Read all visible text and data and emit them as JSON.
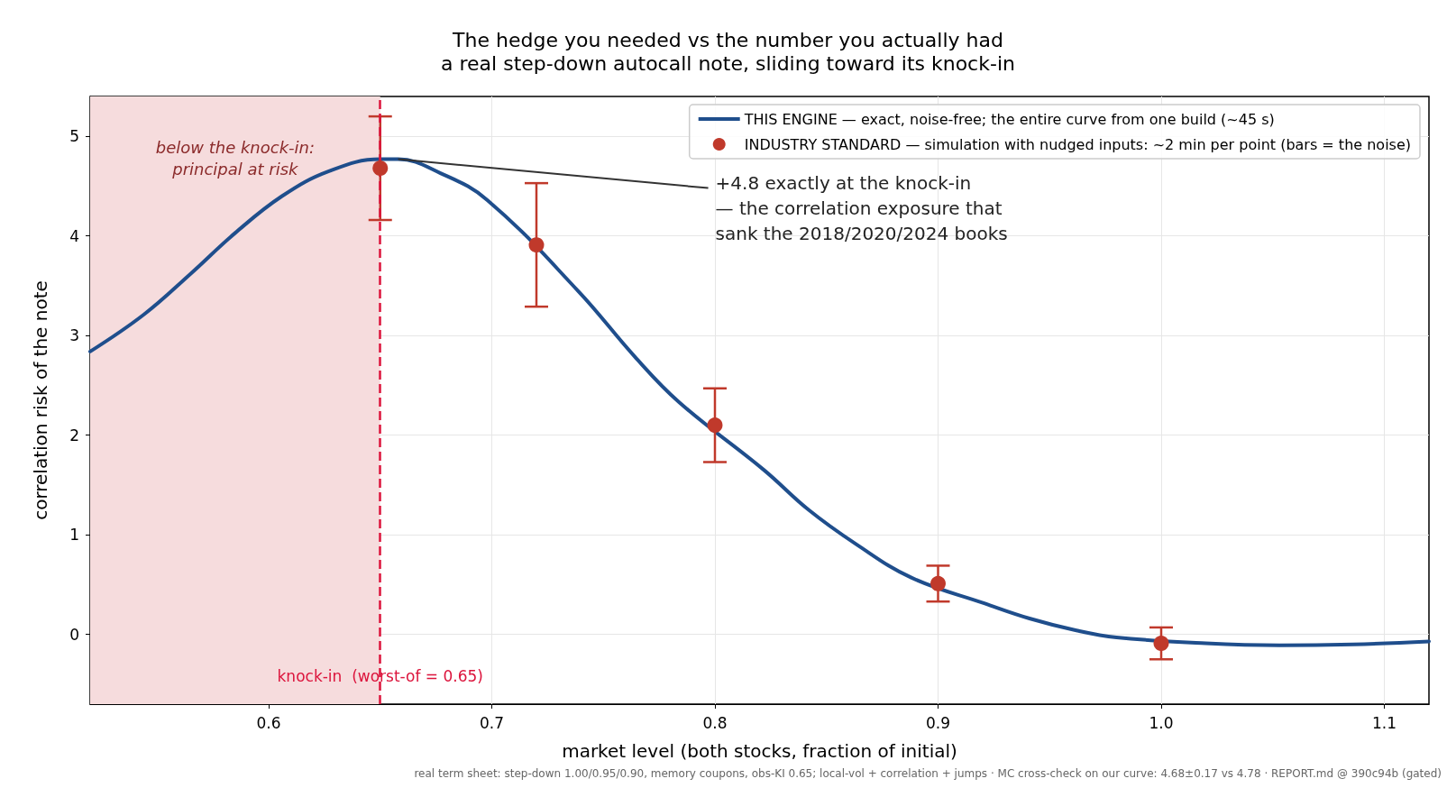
{
  "chart_data": {
    "type": "line",
    "title": "The hedge you needed vs the number you actually had",
    "subtitle": "a real step-down autocall note, sliding toward its knock-in",
    "xlabel": "market level (both stocks, fraction of initial)",
    "ylabel": "correlation risk of the note",
    "xlim": [
      0.52,
      1.12
    ],
    "xticks": [
      0.6,
      0.7,
      0.8,
      0.9,
      {
        "value": 1.0,
        "label": "1.0"
      },
      1.1
    ],
    "ylim": [
      -0.7,
      5.4
    ],
    "yticks": [
      0,
      1,
      2,
      3,
      4,
      5
    ],
    "grid": true,
    "legend": "top right",
    "series": [
      {
        "name": "THIS ENGINE — exact, noise-free; the entire curve from one build (~45 s)",
        "color": "#1f4e8c",
        "marker": "none",
        "line_style": "solid",
        "x": [
          0.52,
          0.544,
          0.565,
          0.585,
          0.606,
          0.627,
          0.65,
          0.658,
          0.677,
          0.698,
          0.739,
          0.764,
          0.784,
          0.822,
          0.842,
          0.863,
          0.888,
          0.921,
          0.941,
          0.962,
          0.98,
          1.02,
          1.053,
          1.086,
          1.12
        ],
        "values": [
          2.84,
          3.21,
          3.62,
          4.03,
          4.4,
          4.65,
          4.77,
          4.77,
          4.63,
          4.36,
          3.44,
          2.79,
          2.33,
          1.65,
          1.25,
          0.91,
          0.57,
          0.31,
          0.16,
          0.04,
          -0.03,
          -0.09,
          -0.11,
          -0.1,
          -0.07
        ]
      },
      {
        "name": "INDUSTRY STANDARD — simulation with nudged inputs: ~2 min per point (bars = the noise)",
        "type": "scatter",
        "color": "#c0392b",
        "marker": "circle",
        "x": [
          0.65,
          0.72,
          0.8,
          0.9,
          1.0
        ],
        "values": [
          4.68,
          3.91,
          2.1,
          0.51,
          -0.09
        ],
        "errors": [
          0.52,
          0.62,
          0.37,
          0.18,
          0.16
        ]
      }
    ],
    "ref_lines": [
      {
        "axis": "x",
        "value": 0.65,
        "label": "knock-in  (worst-of = 0.65)",
        "color": "#dc143c",
        "line_style": "dashed"
      }
    ],
    "bands": [
      {
        "axis": "x",
        "from": 0.52,
        "to": 0.65,
        "label": "below the knock-in:\nprincipal at risk",
        "color": "#f6dcdd"
      }
    ],
    "annotations": [
      {
        "text": "+4.8 exactly at the knock-in\n— the correlation exposure that\nsank the 2018/2020/2024 books",
        "x": 0.658,
        "y": 4.77
      },
      "real term sheet: step-down 1.00/0.95/0.90, memory coupons, obs-KI 0.65; local-vol + correlation + jumps · MC cross-check on our curve: 4.68±0.17 vs 4.78 · REPORT.md @ 390c94b (gated)"
    ]
  }
}
